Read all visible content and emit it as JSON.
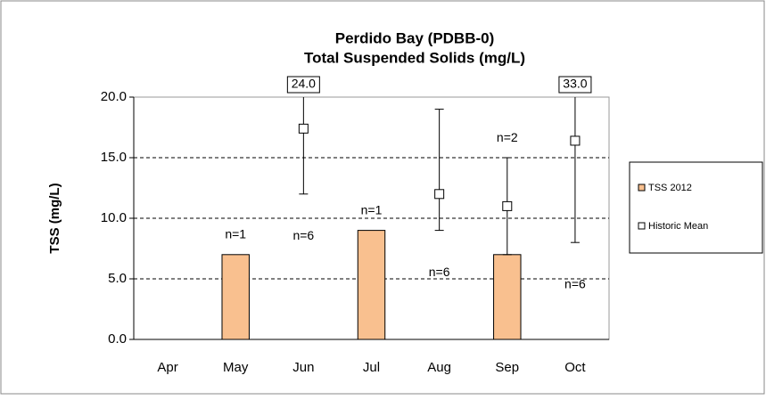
{
  "chart_data": {
    "type": "bar",
    "title": [
      "Perdido Bay (PDBB-0)",
      "Total Suspended Solids  (mg/L)"
    ],
    "y_label": "TSS (mg/L)",
    "categories": [
      "Apr",
      "May",
      "Jun",
      "Jul",
      "Aug",
      "Sep",
      "Oct"
    ],
    "ylim": [
      0,
      20
    ],
    "yticks": [
      {
        "value": 0,
        "label": "0.0"
      },
      {
        "value": 5,
        "label": "5.0"
      },
      {
        "value": 10,
        "label": "10.0"
      },
      {
        "value": 15,
        "label": "15.0"
      },
      {
        "value": 20,
        "label": "20.0"
      }
    ],
    "grid": true,
    "legend": "right",
    "series": [
      {
        "name": "TSS 2012",
        "color": "#f9c08f",
        "values": [
          null,
          7,
          null,
          9,
          null,
          7,
          null
        ],
        "n_labels": [
          null,
          "n=1",
          null,
          "n=1",
          null,
          "n=2",
          null
        ]
      },
      {
        "name": "Historic Mean",
        "type": "errorbar",
        "color": "#ffffff",
        "values": [
          null,
          null,
          17.4,
          null,
          12,
          11,
          16.4
        ],
        "low": [
          null,
          null,
          12,
          null,
          9,
          7,
          8
        ],
        "high": [
          null,
          null,
          24,
          null,
          19,
          15,
          33
        ],
        "high_labels": [
          null,
          null,
          "24.0",
          null,
          null,
          null,
          "33.0"
        ],
        "n_labels": [
          null,
          null,
          "n=6",
          null,
          "n=6",
          null,
          "n=6"
        ]
      }
    ]
  }
}
